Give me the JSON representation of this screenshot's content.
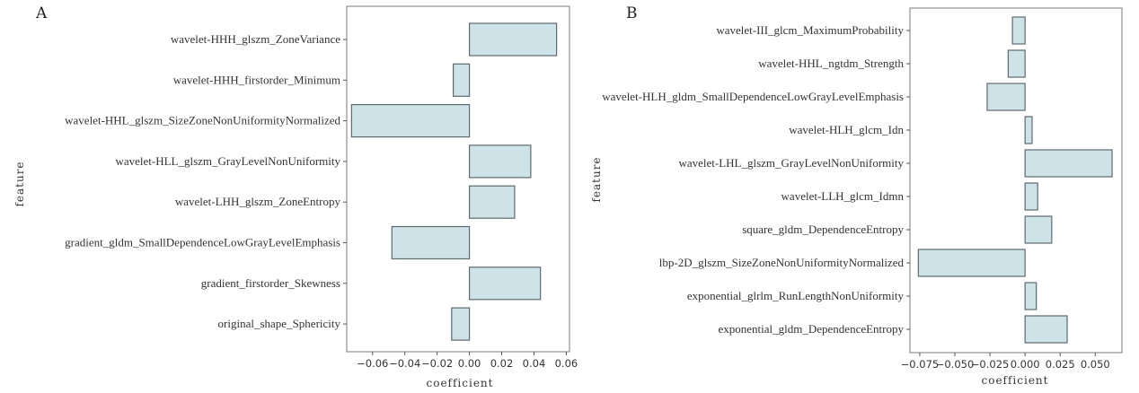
{
  "chart_data": [
    {
      "type": "bar",
      "orientation": "horizontal",
      "panel_label": "A",
      "xlabel": "coefficient",
      "ylabel": "feature",
      "xlim": [
        -0.076,
        0.062
      ],
      "xticks": [
        -0.06,
        -0.04,
        -0.02,
        0.0,
        0.02,
        0.04,
        0.06
      ],
      "xtick_labels": [
        "−0.06",
        "−0.04",
        "−0.02",
        "0.00",
        "0.02",
        "0.04",
        "0.06"
      ],
      "categories": [
        "wavelet-HHH_glszm_ZoneVariance",
        "wavelet-HHH_firstorder_Minimum",
        "wavelet-HHL_glszm_SizeZoneNonUniformityNormalized",
        "wavelet-HLL_glszm_GrayLevelNonUniformity",
        "wavelet-LHH_glszm_ZoneEntropy",
        "gradient_gldm_SmallDependenceLowGrayLevelEmphasis",
        "gradient_firstorder_Skewness",
        "original_shape_Sphericity"
      ],
      "values": [
        0.054,
        -0.01,
        -0.073,
        0.038,
        0.028,
        -0.048,
        0.044,
        -0.011
      ],
      "grid": false
    },
    {
      "type": "bar",
      "orientation": "horizontal",
      "panel_label": "B",
      "xlabel": "coefficient",
      "ylabel": "feature",
      "xlim": [
        -0.082,
        0.069
      ],
      "xticks": [
        -0.075,
        -0.05,
        -0.025,
        0.0,
        0.025,
        0.05
      ],
      "xtick_labels": [
        "−0.075",
        "−0.050",
        "−0.025",
        "0.000",
        "0.025",
        "0.050"
      ],
      "categories": [
        "wavelet-III_glcm_MaximumProbability",
        "wavelet-HHL_ngtdm_Strength",
        "wavelet-HLH_gldm_SmallDependenceLowGrayLevelEmphasis",
        "wavelet-HLH_glcm_Idn",
        "wavelet-LHL_glszm_GrayLevelNonUniformity",
        "wavelet-LLH_glcm_Idmn",
        "square_gldm_DependenceEntropy",
        "lbp-2D_glszm_SizeZoneNonUniformityNormalized",
        "exponential_glrlm_RunLengthNonUniformity",
        "exponential_gldm_DependenceEntropy"
      ],
      "values": [
        -0.009,
        -0.012,
        -0.027,
        0.005,
        0.062,
        0.009,
        0.019,
        -0.076,
        0.008,
        0.03
      ],
      "grid": false
    }
  ]
}
